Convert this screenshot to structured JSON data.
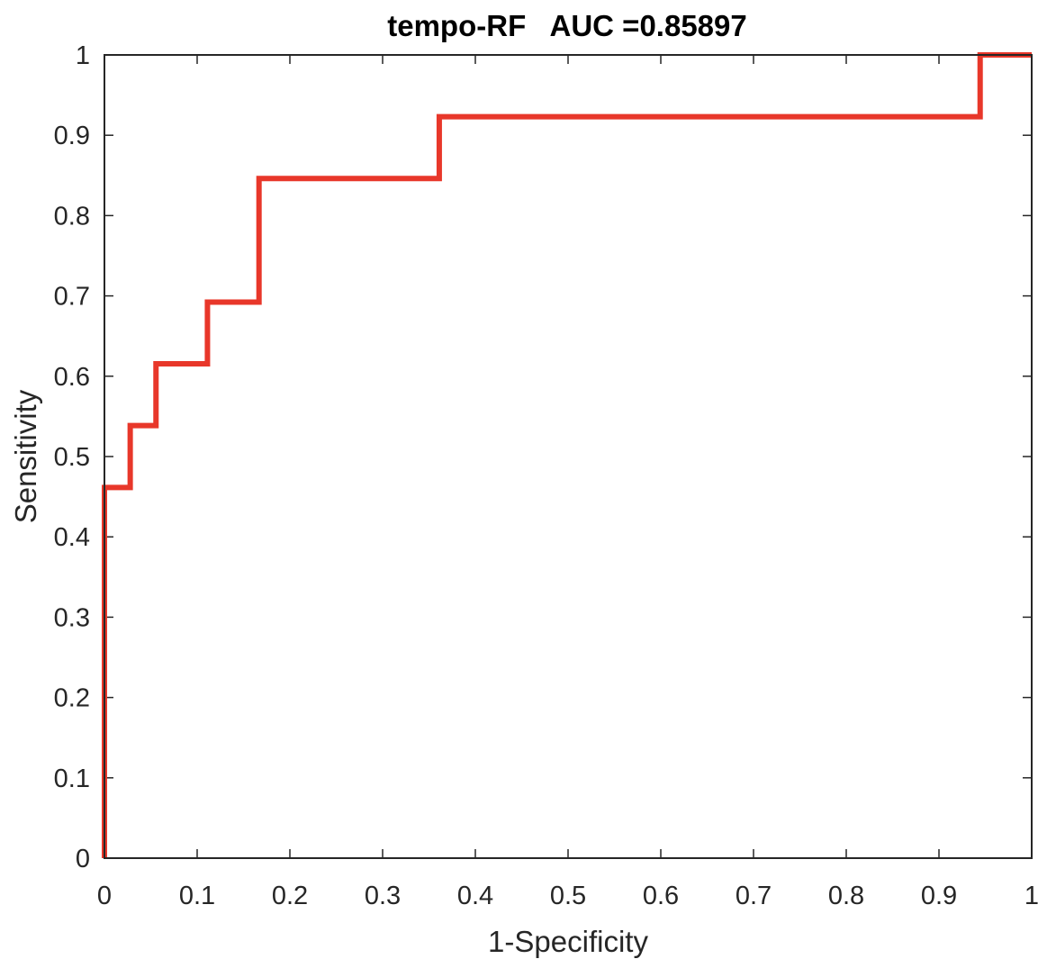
{
  "chart_data": {
    "type": "line",
    "title": "tempo-RF   AUC =0.85897",
    "xlabel": "1-Specificity",
    "ylabel": "Sensitivity",
    "xlim": [
      0,
      1
    ],
    "ylim": [
      0,
      1
    ],
    "xticks": [
      "0",
      "0.1",
      "0.2",
      "0.3",
      "0.4",
      "0.5",
      "0.6",
      "0.7",
      "0.8",
      "0.9",
      "1"
    ],
    "yticks": [
      "0",
      "0.1",
      "0.2",
      "0.3",
      "0.4",
      "0.5",
      "0.6",
      "0.7",
      "0.8",
      "0.9",
      "1"
    ],
    "grid": false,
    "series": [
      {
        "color": "#e8372a",
        "x": [
          0,
          0,
          0.0278,
          0.0278,
          0.0556,
          0.0556,
          0.1111,
          0.1111,
          0.1667,
          0.1667,
          0.3611,
          0.3611,
          0.9444,
          0.9444,
          1
        ],
        "y": [
          0,
          0.4615,
          0.4615,
          0.5385,
          0.5385,
          0.6154,
          0.6154,
          0.6923,
          0.6923,
          0.8462,
          0.8462,
          0.9231,
          0.9231,
          1,
          1
        ]
      }
    ]
  }
}
